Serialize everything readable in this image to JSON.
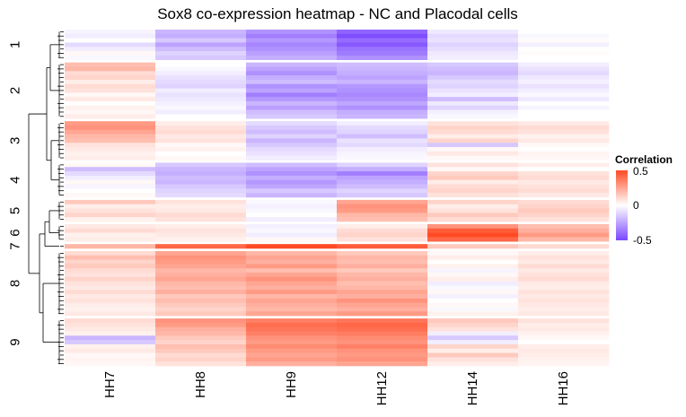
{
  "chart_data": {
    "type": "heatmap",
    "title": "Sox8 co-expression heatmap - NC and Placodal cells",
    "columns": [
      "HH7",
      "HH8",
      "HH9",
      "HH12",
      "HH14",
      "HH16"
    ],
    "clusters": [
      {
        "label": "1",
        "values": [
          [
            -0.03,
            -0.2,
            -0.3,
            -0.42,
            -0.06,
            0.0
          ],
          [
            -0.05,
            -0.22,
            -0.35,
            -0.48,
            -0.1,
            -0.02
          ],
          [
            0.0,
            -0.15,
            -0.28,
            -0.4,
            -0.08,
            0.01
          ],
          [
            -0.1,
            -0.25,
            -0.33,
            -0.45,
            -0.12,
            -0.04
          ],
          [
            -0.05,
            -0.18,
            -0.3,
            -0.38,
            -0.09,
            0.0
          ],
          [
            0.02,
            -0.12,
            -0.26,
            -0.36,
            -0.06,
            0.01
          ],
          [
            -0.02,
            -0.15,
            -0.22,
            -0.3,
            -0.05,
            0.0
          ]
        ]
      },
      {
        "label": "2",
        "values": [
          [
            0.18,
            0.0,
            -0.2,
            -0.18,
            -0.15,
            -0.05
          ],
          [
            0.2,
            -0.02,
            -0.25,
            -0.2,
            -0.18,
            -0.08
          ],
          [
            0.1,
            -0.05,
            -0.3,
            -0.22,
            -0.2,
            -0.1
          ],
          [
            0.12,
            -0.08,
            -0.22,
            -0.25,
            -0.15,
            -0.06
          ],
          [
            0.05,
            -0.1,
            -0.18,
            -0.2,
            -0.1,
            -0.04
          ],
          [
            0.1,
            -0.12,
            -0.3,
            -0.28,
            -0.12,
            -0.08
          ],
          [
            0.08,
            -0.05,
            -0.25,
            -0.3,
            -0.08,
            -0.05
          ],
          [
            0.02,
            -0.08,
            -0.35,
            -0.32,
            -0.05,
            -0.02
          ],
          [
            0.06,
            -0.06,
            -0.28,
            -0.3,
            -0.18,
            -0.06
          ],
          [
            0.0,
            -0.04,
            -0.2,
            -0.24,
            -0.06,
            0.0
          ],
          [
            0.04,
            -0.02,
            -0.26,
            -0.3,
            -0.12,
            -0.03
          ],
          [
            0.02,
            -0.05,
            -0.18,
            -0.22,
            -0.04,
            0.0
          ],
          [
            0.05,
            0.0,
            -0.15,
            -0.2,
            -0.02,
            0.0
          ]
        ]
      },
      {
        "label": "3",
        "values": [
          [
            0.28,
            0.05,
            -0.1,
            -0.05,
            0.08,
            0.06
          ],
          [
            0.3,
            0.08,
            -0.15,
            -0.1,
            0.12,
            0.1
          ],
          [
            0.25,
            0.1,
            -0.18,
            -0.12,
            0.1,
            0.08
          ],
          [
            0.2,
            0.06,
            -0.12,
            -0.18,
            0.05,
            0.04
          ],
          [
            0.18,
            0.08,
            -0.2,
            -0.08,
            0.12,
            0.06
          ],
          [
            0.08,
            0.02,
            -0.15,
            -0.1,
            -0.15,
            0.02
          ],
          [
            0.06,
            0.04,
            -0.1,
            -0.05,
            0.02,
            0.0
          ],
          [
            0.04,
            0.0,
            -0.08,
            -0.03,
            0.06,
            0.03
          ],
          [
            0.05,
            0.02,
            -0.05,
            -0.02,
            0.02,
            0.02
          ]
        ]
      },
      {
        "label": "4",
        "values": [
          [
            0.02,
            -0.15,
            -0.18,
            -0.12,
            0.08,
            0.05
          ],
          [
            -0.18,
            -0.2,
            -0.25,
            -0.22,
            0.02,
            0.0
          ],
          [
            -0.1,
            -0.22,
            -0.3,
            -0.35,
            0.12,
            0.08
          ],
          [
            -0.05,
            -0.18,
            -0.22,
            -0.25,
            0.15,
            0.1
          ],
          [
            0.02,
            -0.2,
            -0.28,
            -0.22,
            0.05,
            0.06
          ],
          [
            -0.03,
            -0.15,
            -0.24,
            -0.18,
            0.1,
            0.08
          ],
          [
            0.0,
            -0.12,
            -0.15,
            -0.12,
            0.12,
            0.1
          ],
          [
            0.02,
            -0.1,
            -0.2,
            -0.15,
            0.08,
            0.06
          ]
        ]
      },
      {
        "label": "5",
        "values": [
          [
            0.15,
            0.08,
            -0.02,
            0.25,
            0.12,
            0.1
          ],
          [
            0.05,
            0.05,
            -0.04,
            0.3,
            0.05,
            0.12
          ],
          [
            0.08,
            0.06,
            -0.02,
            0.28,
            0.08,
            0.15
          ],
          [
            0.12,
            0.1,
            0.0,
            0.2,
            0.15,
            0.12
          ],
          [
            0.04,
            0.08,
            -0.05,
            0.18,
            0.1,
            0.08
          ]
        ]
      },
      {
        "label": "6",
        "values": [
          [
            0.06,
            0.05,
            -0.04,
            0.05,
            0.3,
            0.18
          ],
          [
            0.1,
            0.08,
            -0.02,
            0.1,
            0.45,
            0.22
          ],
          [
            0.04,
            0.06,
            -0.05,
            0.12,
            0.5,
            0.28
          ],
          [
            0.05,
            0.04,
            0.02,
            0.08,
            0.42,
            0.2
          ]
        ]
      },
      {
        "label": "7",
        "values": [
          [
            0.2,
            0.42,
            0.55,
            0.45,
            0.15,
            0.1
          ]
        ]
      },
      {
        "label": "8",
        "values": [
          [
            0.1,
            0.25,
            0.2,
            0.15,
            0.02,
            0.05
          ],
          [
            0.18,
            0.3,
            0.25,
            0.2,
            0.05,
            0.08
          ],
          [
            0.12,
            0.28,
            0.22,
            0.18,
            0.0,
            0.06
          ],
          [
            0.15,
            0.25,
            0.28,
            0.22,
            0.04,
            0.1
          ],
          [
            0.1,
            0.2,
            0.18,
            0.15,
            -0.03,
            0.06
          ],
          [
            0.08,
            0.22,
            0.25,
            0.2,
            0.02,
            0.08
          ],
          [
            0.12,
            0.25,
            0.3,
            0.22,
            0.05,
            0.1
          ],
          [
            0.08,
            0.2,
            0.25,
            0.18,
            -0.05,
            0.06
          ],
          [
            0.06,
            0.18,
            0.22,
            0.2,
            -0.02,
            0.05
          ],
          [
            0.1,
            0.22,
            0.28,
            0.25,
            0.02,
            0.08
          ],
          [
            0.06,
            0.15,
            0.2,
            0.22,
            -0.04,
            0.06
          ],
          [
            0.08,
            0.18,
            0.25,
            0.3,
            0.0,
            0.08
          ],
          [
            0.05,
            0.15,
            0.22,
            0.25,
            0.02,
            0.06
          ],
          [
            0.04,
            0.12,
            0.2,
            0.22,
            -0.02,
            0.05
          ],
          [
            0.06,
            0.15,
            0.25,
            0.28,
            0.04,
            0.06
          ]
        ]
      },
      {
        "label": "9",
        "values": [
          [
            0.1,
            0.3,
            0.35,
            0.38,
            0.15,
            0.08
          ],
          [
            0.08,
            0.28,
            0.4,
            0.42,
            0.12,
            0.05
          ],
          [
            0.06,
            0.22,
            0.38,
            0.4,
            0.08,
            0.06
          ],
          [
            0.04,
            0.2,
            0.35,
            0.36,
            -0.05,
            0.04
          ],
          [
            -0.2,
            0.15,
            0.3,
            0.32,
            -0.15,
            0.02
          ],
          [
            -0.15,
            0.12,
            0.28,
            0.3,
            -0.05,
            0.0
          ],
          [
            0.04,
            0.18,
            0.32,
            0.35,
            0.12,
            0.05
          ],
          [
            0.06,
            0.15,
            0.28,
            0.3,
            0.05,
            0.06
          ],
          [
            0.02,
            0.1,
            0.25,
            0.28,
            0.15,
            0.05
          ],
          [
            0.03,
            0.12,
            0.28,
            0.3,
            0.08,
            0.04
          ],
          [
            0.02,
            0.08,
            0.22,
            0.25,
            0.05,
            0.03
          ]
        ]
      }
    ],
    "color_scale": {
      "min": -0.5,
      "max": 0.5,
      "low": "#7a47ff",
      "mid": "#ffffff",
      "high": "#ff4a24"
    },
    "legend": {
      "title": "Correlation",
      "ticks": [
        "0.5",
        "0",
        "-0.5"
      ],
      "placement": "right"
    }
  }
}
